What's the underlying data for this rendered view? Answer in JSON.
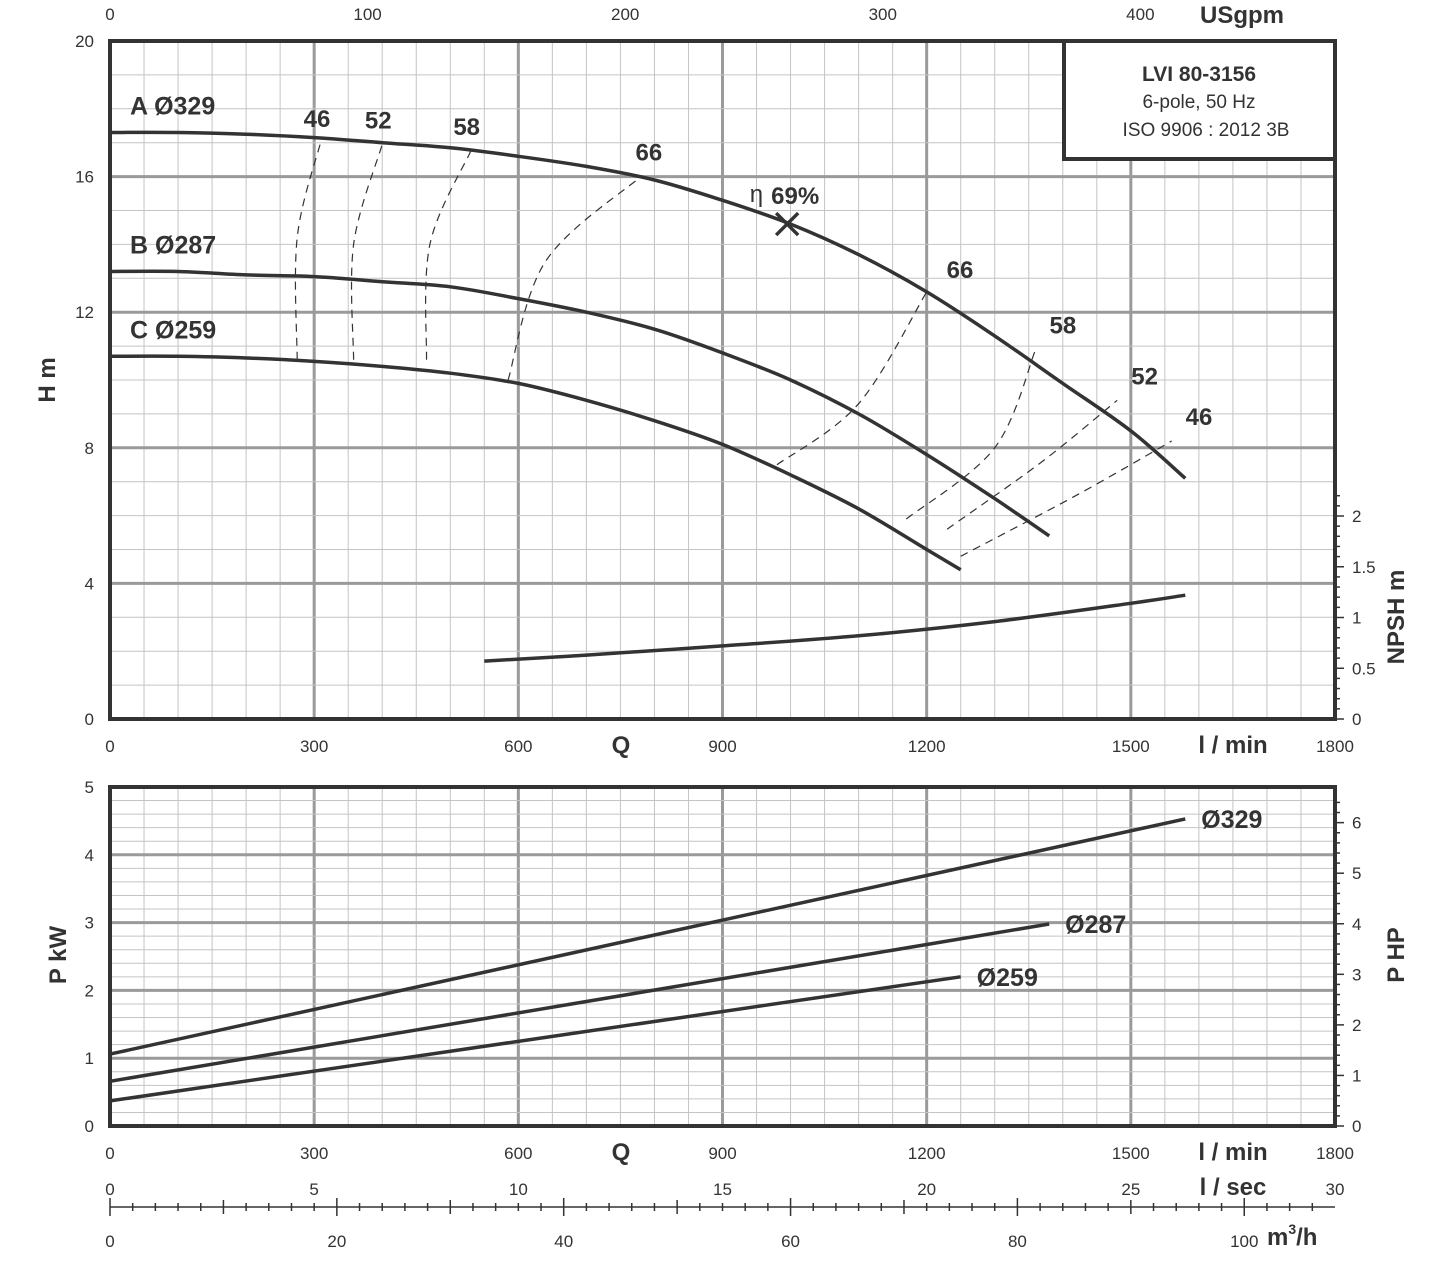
{
  "legend": {
    "model": "LVI 80-3156",
    "line1": "6-pole, 50 Hz",
    "line2": "ISO 9906 : 2012 3B"
  },
  "axes": {
    "q_label": "Q",
    "lmin_unit": "l / min",
    "lsec_unit": "l / sec",
    "m3h_unit": "m",
    "m3h_unit_sup": "3",
    "m3h_unit_tail": "/h",
    "usgpm_unit": "USgpm",
    "head_label": "H m",
    "npsh_label": "NPSH m",
    "pkw_label": "P kW",
    "php_label": "P HP",
    "lmin_ticks": [
      "0",
      "300",
      "600",
      "900",
      "1200",
      "1500",
      "1800"
    ],
    "usgpm_ticks": [
      "0",
      "100",
      "200",
      "300",
      "400"
    ],
    "lsec_ticks": [
      "0",
      "5",
      "10",
      "15",
      "20",
      "25",
      "30"
    ],
    "m3h_ticks": [
      "0",
      "20",
      "40",
      "60",
      "80",
      "100"
    ],
    "head_ticks": [
      "0",
      "4",
      "8",
      "12",
      "16",
      "20"
    ],
    "npsh_ticks": [
      "0",
      "0.5",
      "1",
      "1.5",
      "2"
    ],
    "pkw_ticks": [
      "0",
      "1",
      "2",
      "3",
      "4",
      "5"
    ],
    "php_ticks": [
      "0",
      "1",
      "2",
      "3",
      "4",
      "5",
      "6"
    ]
  },
  "efficiency": {
    "symbol": "η",
    "best_label": "69%"
  },
  "chart_data": [
    {
      "type": "line",
      "title": "LVI 80-3156",
      "xlabel": "Q l / min",
      "ylabel": "H m",
      "xlim": [
        0,
        1800
      ],
      "ylim": [
        0,
        20
      ],
      "y2label": "NPSH m",
      "y2lim": [
        0,
        2
      ],
      "x2label": "USgpm",
      "grid": true,
      "legend": "top-right",
      "series": [
        {
          "name": "A Ø329",
          "x": [
            0,
            100,
            200,
            300,
            400,
            500,
            600,
            700,
            800,
            900,
            1000,
            1100,
            1200,
            1300,
            1400,
            1500,
            1580
          ],
          "y": [
            17.3,
            17.3,
            17.25,
            17.15,
            17.0,
            16.85,
            16.6,
            16.3,
            15.9,
            15.3,
            14.6,
            13.7,
            12.6,
            11.3,
            9.9,
            8.5,
            7.1
          ]
        },
        {
          "name": "B Ø287",
          "x": [
            0,
            100,
            200,
            300,
            400,
            500,
            600,
            700,
            800,
            900,
            1000,
            1100,
            1200,
            1300,
            1380
          ],
          "y": [
            13.2,
            13.2,
            13.1,
            13.05,
            12.9,
            12.75,
            12.4,
            12.0,
            11.5,
            10.8,
            10.0,
            9.0,
            7.8,
            6.5,
            5.4
          ]
        },
        {
          "name": "C Ø259",
          "x": [
            0,
            100,
            200,
            300,
            400,
            500,
            600,
            700,
            800,
            900,
            1000,
            1100,
            1200,
            1250
          ],
          "y": [
            10.7,
            10.7,
            10.65,
            10.55,
            10.4,
            10.2,
            9.9,
            9.4,
            8.8,
            8.1,
            7.2,
            6.2,
            5.0,
            4.4
          ]
        },
        {
          "name": "NPSH",
          "axis": "y2",
          "x": [
            550,
            700,
            900,
            1100,
            1300,
            1500,
            1580
          ],
          "y2": [
            0.57,
            0.63,
            0.72,
            0.82,
            0.96,
            1.14,
            1.22
          ]
        }
      ],
      "efficiency_contours": [
        {
          "label": "46",
          "points": [
            [
              275,
              10.6
            ],
            [
              275,
              14.2
            ],
            [
              310,
              17.05
            ]
          ],
          "right_points": [
            [
              1250,
              4.8
            ],
            [
              1420,
              6.6
            ],
            [
              1560,
              8.2
            ]
          ]
        },
        {
          "label": "52",
          "points": [
            [
              358,
              10.6
            ],
            [
              358,
              14.0
            ],
            [
              400,
              16.95
            ]
          ],
          "right_points": [
            [
              1230,
              5.6
            ],
            [
              1370,
              7.6
            ],
            [
              1480,
              9.4
            ]
          ]
        },
        {
          "label": "58",
          "points": [
            [
              465,
              10.6
            ],
            [
              470,
              14.0
            ],
            [
              530,
              16.75
            ]
          ],
          "right_points": [
            [
              1170,
              5.9
            ],
            [
              1300,
              8.0
            ],
            [
              1360,
              10.9
            ]
          ]
        },
        {
          "label": "66",
          "points": [
            [
              585,
              10.0
            ],
            [
              640,
              13.5
            ],
            [
              780,
              16.0
            ]
          ],
          "right_points": [
            [
              980,
              7.5
            ],
            [
              1100,
              9.3
            ],
            [
              1200,
              12.6
            ]
          ]
        }
      ],
      "best_efficiency_point": {
        "x": 995,
        "y": 14.6,
        "label": "69%"
      }
    },
    {
      "type": "line",
      "xlabel": "Q l / min",
      "ylabel": "P kW",
      "xlim": [
        0,
        1800
      ],
      "ylim": [
        0,
        5
      ],
      "y2label": "P HP",
      "y2lim": [
        0,
        6.7
      ],
      "x2label": "l / sec",
      "x3label": "m3/h",
      "grid": true,
      "series": [
        {
          "name": "Ø329",
          "x": [
            0,
            1580
          ],
          "y": [
            1.06,
            4.53
          ]
        },
        {
          "name": "Ø287",
          "x": [
            0,
            1380
          ],
          "y": [
            0.66,
            2.98
          ]
        },
        {
          "name": "Ø259",
          "x": [
            0,
            1250
          ],
          "y": [
            0.37,
            2.2
          ]
        }
      ]
    }
  ]
}
